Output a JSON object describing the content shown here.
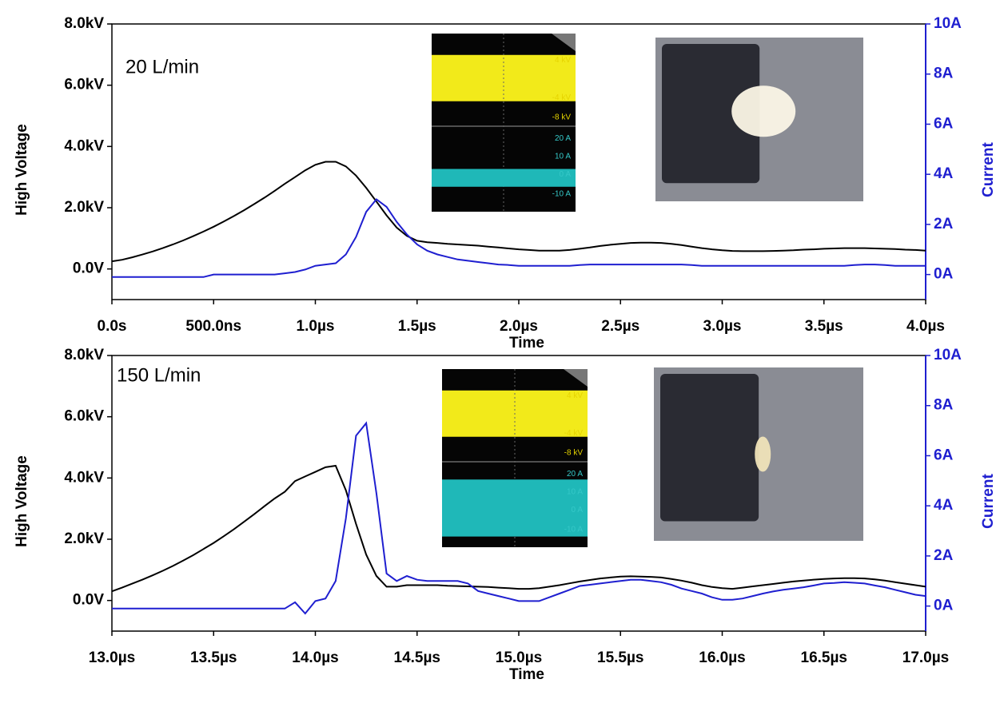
{
  "chart_data": [
    {
      "type": "line",
      "annotation": "20 L/min",
      "x_label": "Time",
      "y_label": "High Voltage",
      "y2_label": "Current",
      "scope_labels": [
        "4 kV",
        "-4 kV",
        "-8 kV",
        "20 A",
        "10 A",
        "0 A",
        "-10 A"
      ],
      "xlim": [
        0,
        4
      ],
      "xticks": [
        {
          "value": 0,
          "label": "0.0s"
        },
        {
          "value": 0.5,
          "label": "500.0ns"
        },
        {
          "value": 1,
          "label": "1.0µs"
        },
        {
          "value": 1.5,
          "label": "1.5µs"
        },
        {
          "value": 2,
          "label": "2.0µs"
        },
        {
          "value": 2.5,
          "label": "2.5µs"
        },
        {
          "value": 3,
          "label": "3.0µs"
        },
        {
          "value": 3.5,
          "label": "3.5µs"
        },
        {
          "value": 4,
          "label": "4.0µs"
        }
      ],
      "ylim": [
        -1,
        8
      ],
      "yticks": [
        {
          "value": 0,
          "label": "0.0V"
        },
        {
          "value": 2,
          "label": "2.0kV"
        },
        {
          "value": 4,
          "label": "4.0kV"
        },
        {
          "value": 6,
          "label": "6.0kV"
        },
        {
          "value": 8,
          "label": "8.0kV"
        }
      ],
      "y2lim": [
        -1,
        10
      ],
      "y2ticks": [
        {
          "value": 0,
          "label": "0A"
        },
        {
          "value": 2,
          "label": "2A"
        },
        {
          "value": 4,
          "label": "4A"
        },
        {
          "value": 6,
          "label": "6A"
        },
        {
          "value": 8,
          "label": "8A"
        },
        {
          "value": 10,
          "label": "10A"
        }
      ],
      "x": [
        0,
        0.05,
        0.1,
        0.15,
        0.2,
        0.25,
        0.3,
        0.35,
        0.4,
        0.45,
        0.5,
        0.55,
        0.6,
        0.65,
        0.7,
        0.75,
        0.8,
        0.85,
        0.9,
        0.95,
        1,
        1.05,
        1.1,
        1.15,
        1.2,
        1.25,
        1.3,
        1.35,
        1.4,
        1.45,
        1.5,
        1.55,
        1.6,
        1.65,
        1.7,
        1.75,
        1.8,
        1.85,
        1.9,
        1.95,
        2,
        2.05,
        2.1,
        2.15,
        2.2,
        2.25,
        2.3,
        2.35,
        2.4,
        2.45,
        2.5,
        2.55,
        2.6,
        2.65,
        2.7,
        2.75,
        2.8,
        2.85,
        2.9,
        2.95,
        3,
        3.05,
        3.1,
        3.15,
        3.2,
        3.25,
        3.3,
        3.35,
        3.4,
        3.45,
        3.5,
        3.55,
        3.6,
        3.65,
        3.7,
        3.75,
        3.8,
        3.85,
        3.9,
        3.95,
        4
      ],
      "series": [
        {
          "color": "#000000",
          "values": [
            0.25,
            0.3,
            0.38,
            0.47,
            0.57,
            0.68,
            0.8,
            0.93,
            1.07,
            1.22,
            1.38,
            1.55,
            1.73,
            1.92,
            2.12,
            2.33,
            2.55,
            2.78,
            3.0,
            3.22,
            3.4,
            3.5,
            3.5,
            3.35,
            3.05,
            2.65,
            2.2,
            1.75,
            1.35,
            1.08,
            0.92,
            0.87,
            0.85,
            0.82,
            0.8,
            0.78,
            0.76,
            0.73,
            0.7,
            0.67,
            0.64,
            0.62,
            0.6,
            0.6,
            0.6,
            0.62,
            0.66,
            0.7,
            0.75,
            0.79,
            0.82,
            0.85,
            0.86,
            0.86,
            0.85,
            0.82,
            0.78,
            0.73,
            0.68,
            0.64,
            0.61,
            0.59,
            0.58,
            0.58,
            0.58,
            0.59,
            0.6,
            0.61,
            0.63,
            0.64,
            0.66,
            0.67,
            0.68,
            0.68,
            0.68,
            0.67,
            0.66,
            0.65,
            0.63,
            0.62,
            0.6
          ]
        },
        {
          "color": "#1f1fd0",
          "axis": "y2",
          "values": [
            -0.1,
            -0.1,
            -0.1,
            -0.1,
            -0.1,
            -0.1,
            -0.1,
            -0.1,
            -0.1,
            -0.1,
            0,
            0,
            0,
            0,
            0,
            0,
            0,
            0.05,
            0.1,
            0.2,
            0.35,
            0.4,
            0.45,
            0.8,
            1.5,
            2.5,
            3.0,
            2.7,
            2.1,
            1.6,
            1.2,
            0.95,
            0.8,
            0.7,
            0.6,
            0.55,
            0.5,
            0.45,
            0.4,
            0.38,
            0.35,
            0.35,
            0.35,
            0.35,
            0.35,
            0.35,
            0.38,
            0.4,
            0.4,
            0.4,
            0.4,
            0.4,
            0.4,
            0.4,
            0.4,
            0.4,
            0.4,
            0.38,
            0.35,
            0.35,
            0.35,
            0.35,
            0.35,
            0.35,
            0.35,
            0.35,
            0.35,
            0.35,
            0.35,
            0.35,
            0.35,
            0.35,
            0.35,
            0.38,
            0.4,
            0.4,
            0.38,
            0.35,
            0.35,
            0.35,
            0.35
          ]
        }
      ]
    },
    {
      "type": "line",
      "annotation": "150 L/min",
      "x_label": "Time",
      "y_label": "High Voltage",
      "y2_label": "Current",
      "scope_labels": [
        "4 kV",
        "-4 kV",
        "-8 kV",
        "20 A",
        "10 A",
        "0 A",
        "-10 A"
      ],
      "xlim": [
        13,
        17
      ],
      "xticks": [
        {
          "value": 13,
          "label": "13.0µs"
        },
        {
          "value": 13.5,
          "label": "13.5µs"
        },
        {
          "value": 14,
          "label": "14.0µs"
        },
        {
          "value": 14.5,
          "label": "14.5µs"
        },
        {
          "value": 15,
          "label": "15.0µs"
        },
        {
          "value": 15.5,
          "label": "15.5µs"
        },
        {
          "value": 16,
          "label": "16.0µs"
        },
        {
          "value": 16.5,
          "label": "16.5µs"
        },
        {
          "value": 17,
          "label": "17.0µs"
        }
      ],
      "ylim": [
        -1,
        8
      ],
      "yticks": [
        {
          "value": 0,
          "label": "0.0V"
        },
        {
          "value": 2,
          "label": "2.0kV"
        },
        {
          "value": 4,
          "label": "4.0kV"
        },
        {
          "value": 6,
          "label": "6.0kV"
        },
        {
          "value": 8,
          "label": "8.0kV"
        }
      ],
      "y2lim": [
        -1,
        10
      ],
      "y2ticks": [
        {
          "value": 0,
          "label": "0A"
        },
        {
          "value": 2,
          "label": "2A"
        },
        {
          "value": 4,
          "label": "4A"
        },
        {
          "value": 6,
          "label": "6A"
        },
        {
          "value": 8,
          "label": "8A"
        },
        {
          "value": 10,
          "label": "10A"
        }
      ],
      "x": [
        13,
        13.05,
        13.1,
        13.15,
        13.2,
        13.25,
        13.3,
        13.35,
        13.4,
        13.45,
        13.5,
        13.55,
        13.6,
        13.65,
        13.7,
        13.75,
        13.8,
        13.85,
        13.9,
        13.95,
        14,
        14.05,
        14.1,
        14.15,
        14.2,
        14.25,
        14.3,
        14.35,
        14.4,
        14.45,
        14.5,
        14.55,
        14.6,
        14.65,
        14.7,
        14.75,
        14.8,
        14.85,
        14.9,
        14.95,
        15,
        15.05,
        15.1,
        15.15,
        15.2,
        15.25,
        15.3,
        15.35,
        15.4,
        15.45,
        15.5,
        15.55,
        15.6,
        15.65,
        15.7,
        15.75,
        15.8,
        15.85,
        15.9,
        15.95,
        16,
        16.05,
        16.1,
        16.15,
        16.2,
        16.25,
        16.3,
        16.35,
        16.4,
        16.45,
        16.5,
        16.55,
        16.6,
        16.65,
        16.7,
        16.75,
        16.8,
        16.85,
        16.9,
        16.95,
        17
      ],
      "series": [
        {
          "color": "#000000",
          "values": [
            0.3,
            0.42,
            0.55,
            0.68,
            0.82,
            0.97,
            1.13,
            1.3,
            1.48,
            1.68,
            1.88,
            2.1,
            2.33,
            2.57,
            2.82,
            3.08,
            3.33,
            3.55,
            3.9,
            4.05,
            4.2,
            4.35,
            4.4,
            3.6,
            2.5,
            1.5,
            0.8,
            0.45,
            0.45,
            0.5,
            0.5,
            0.5,
            0.5,
            0.48,
            0.47,
            0.46,
            0.45,
            0.44,
            0.42,
            0.4,
            0.38,
            0.38,
            0.4,
            0.45,
            0.5,
            0.56,
            0.62,
            0.67,
            0.72,
            0.75,
            0.78,
            0.79,
            0.78,
            0.77,
            0.75,
            0.7,
            0.65,
            0.58,
            0.5,
            0.44,
            0.4,
            0.38,
            0.42,
            0.46,
            0.5,
            0.54,
            0.58,
            0.62,
            0.65,
            0.68,
            0.7,
            0.72,
            0.73,
            0.73,
            0.72,
            0.69,
            0.65,
            0.6,
            0.55,
            0.5,
            0.45
          ]
        },
        {
          "color": "#1f1fd0",
          "axis": "y2",
          "values": [
            -0.1,
            -0.1,
            -0.1,
            -0.1,
            -0.1,
            -0.1,
            -0.1,
            -0.1,
            -0.1,
            -0.1,
            -0.1,
            -0.1,
            -0.1,
            -0.1,
            -0.1,
            -0.1,
            -0.1,
            -0.1,
            0.15,
            -0.3,
            0.2,
            0.3,
            1.0,
            3.5,
            6.8,
            7.3,
            4.5,
            1.3,
            1.0,
            1.2,
            1.05,
            1.0,
            1.0,
            1.0,
            1.0,
            0.9,
            0.6,
            0.5,
            0.4,
            0.3,
            0.2,
            0.2,
            0.2,
            0.35,
            0.5,
            0.65,
            0.8,
            0.85,
            0.9,
            0.95,
            1.0,
            1.05,
            1.05,
            1.0,
            0.95,
            0.85,
            0.7,
            0.6,
            0.5,
            0.35,
            0.25,
            0.25,
            0.3,
            0.4,
            0.5,
            0.58,
            0.65,
            0.7,
            0.75,
            0.82,
            0.9,
            0.92,
            0.95,
            0.93,
            0.9,
            0.82,
            0.75,
            0.65,
            0.55,
            0.45,
            0.4
          ]
        }
      ]
    }
  ]
}
